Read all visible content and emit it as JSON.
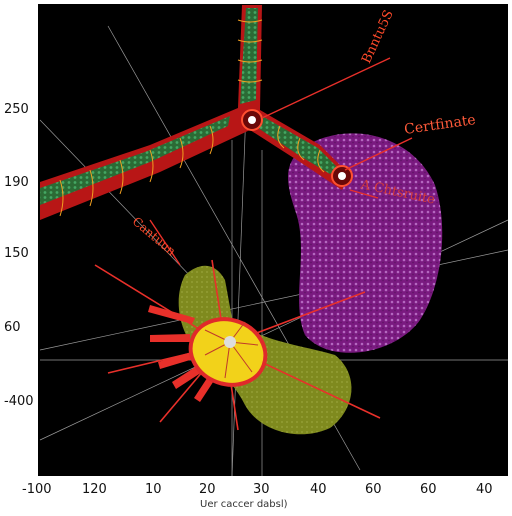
{
  "annotations": {
    "top_right": "Bnntu5S",
    "right_upper": "Certfinate",
    "right_mid": "A Chtsruite",
    "left_mid": "Cantuun"
  },
  "y_ticks": [
    "250",
    "190",
    "150",
    "60",
    "-400"
  ],
  "x_ticks": [
    "-100",
    "120",
    "10",
    "20",
    "30",
    "40",
    "60",
    "60",
    "40"
  ],
  "x_axis_label": "Uer caccer dabsl)",
  "colors": {
    "background": "#000000",
    "vessel": "#c41b1b",
    "vessel_texture": "#1a9a4e",
    "purple_mass": "#8a1e8e",
    "olive_mass": "#7f8a1e",
    "core_yellow": "#f2d21a",
    "label_red": "#ff4a2a"
  }
}
